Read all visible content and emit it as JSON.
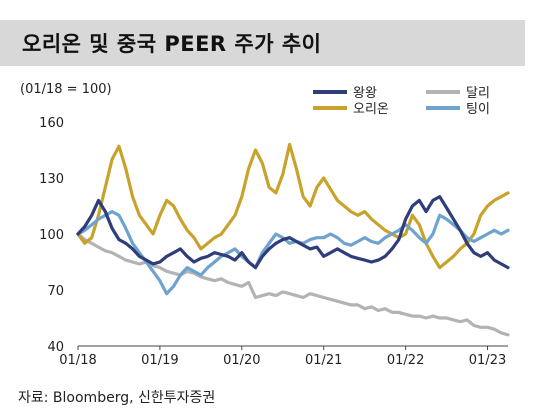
{
  "title": "오리온 및 중국 PEER 주가 추이",
  "subtitle": "(01/18 = 100)",
  "source": "자료: Bloomberg, 신한투자증권",
  "chart_data": {
    "type": "line",
    "title": "오리온 및 중국 PEER 주가 추이",
    "ylabel": "(01/18 = 100)",
    "ylim": [
      40,
      160
    ],
    "yticks": [
      40,
      70,
      100,
      130,
      160
    ],
    "xticks": [
      "01/18",
      "01/19",
      "01/20",
      "01/21",
      "01/22",
      "01/23"
    ],
    "x": [
      "2018-01",
      "2018-02",
      "2018-03",
      "2018-04",
      "2018-05",
      "2018-06",
      "2018-07",
      "2018-08",
      "2018-09",
      "2018-10",
      "2018-11",
      "2018-12",
      "2019-01",
      "2019-02",
      "2019-03",
      "2019-04",
      "2019-05",
      "2019-06",
      "2019-07",
      "2019-08",
      "2019-09",
      "2019-10",
      "2019-11",
      "2019-12",
      "2020-01",
      "2020-02",
      "2020-03",
      "2020-04",
      "2020-05",
      "2020-06",
      "2020-07",
      "2020-08",
      "2020-09",
      "2020-10",
      "2020-11",
      "2020-12",
      "2021-01",
      "2021-02",
      "2021-03",
      "2021-04",
      "2021-05",
      "2021-06",
      "2021-07",
      "2021-08",
      "2021-09",
      "2021-10",
      "2021-11",
      "2021-12",
      "2022-01",
      "2022-02",
      "2022-03",
      "2022-04",
      "2022-05",
      "2022-06",
      "2022-07",
      "2022-08",
      "2022-09",
      "2022-10",
      "2022-11",
      "2022-12",
      "2023-01",
      "2023-02",
      "2023-03",
      "2023-04"
    ],
    "legend_position": "top-right",
    "series": [
      {
        "name": "왕왕",
        "color": "#2f3d7a",
        "values": [
          100,
          104,
          110,
          118,
          112,
          103,
          97,
          95,
          92,
          88,
          86,
          84,
          85,
          88,
          90,
          92,
          88,
          85,
          87,
          88,
          90,
          89,
          88,
          86,
          90,
          85,
          82,
          88,
          92,
          95,
          97,
          98,
          96,
          94,
          92,
          93,
          88,
          90,
          92,
          90,
          88,
          87,
          86,
          85,
          86,
          88,
          92,
          97,
          108,
          115,
          118,
          112,
          118,
          120,
          114,
          108,
          102,
          95,
          90,
          88,
          90,
          86,
          84,
          82
        ]
      },
      {
        "name": "달리",
        "color": "#b3b3b3",
        "values": [
          100,
          97,
          95,
          93,
          91,
          90,
          88,
          86,
          85,
          84,
          85,
          83,
          82,
          80,
          79,
          78,
          80,
          79,
          77,
          76,
          75,
          76,
          74,
          73,
          72,
          74,
          66,
          67,
          68,
          67,
          69,
          68,
          67,
          66,
          68,
          67,
          66,
          65,
          64,
          63,
          62,
          62,
          60,
          61,
          59,
          60,
          58,
          58,
          57,
          56,
          56,
          55,
          56,
          55,
          55,
          54,
          53,
          54,
          51,
          50,
          50,
          49,
          47,
          46
        ]
      },
      {
        "name": "오리온",
        "color": "#c8a22b",
        "values": [
          100,
          95,
          98,
          110,
          125,
          140,
          147,
          135,
          120,
          110,
          105,
          100,
          110,
          118,
          115,
          108,
          102,
          98,
          92,
          95,
          98,
          100,
          105,
          110,
          120,
          135,
          145,
          138,
          125,
          122,
          132,
          148,
          135,
          120,
          115,
          125,
          130,
          124,
          118,
          115,
          112,
          110,
          112,
          108,
          105,
          102,
          100,
          98,
          100,
          110,
          105,
          95,
          88,
          82,
          85,
          88,
          92,
          95,
          100,
          110,
          115,
          118,
          120,
          122
        ]
      },
      {
        "name": "팅이",
        "color": "#6fa3cf",
        "values": [
          100,
          102,
          105,
          108,
          110,
          112,
          110,
          103,
          95,
          90,
          85,
          80,
          75,
          68,
          72,
          78,
          82,
          80,
          78,
          82,
          85,
          88,
          90,
          92,
          88,
          85,
          82,
          90,
          95,
          100,
          98,
          95,
          96,
          95,
          97,
          98,
          98,
          100,
          98,
          95,
          94,
          96,
          98,
          96,
          95,
          98,
          100,
          102,
          105,
          102,
          98,
          95,
          100,
          110,
          108,
          105,
          102,
          98,
          96,
          98,
          100,
          102,
          100,
          102
        ]
      }
    ]
  }
}
